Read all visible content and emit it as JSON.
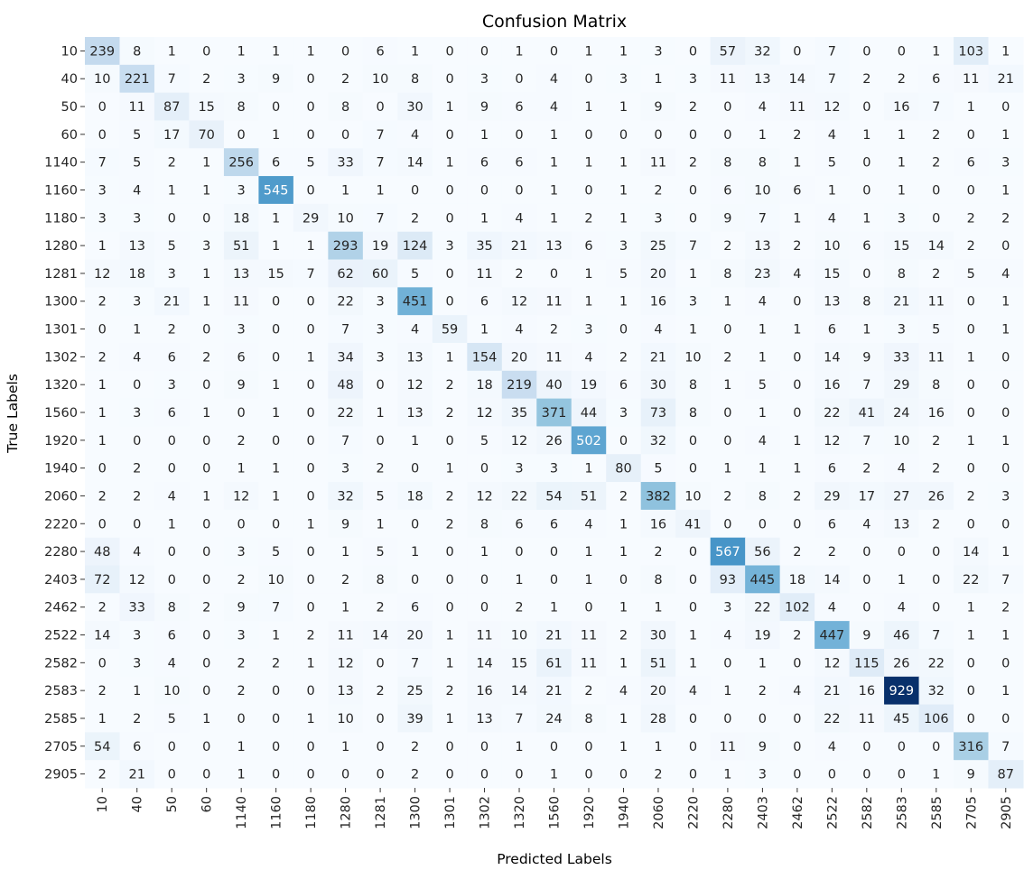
{
  "chart_data": {
    "type": "heatmap",
    "title": "Confusion Matrix",
    "xlabel": "Predicted Labels",
    "ylabel": "True Labels",
    "colormap": "Blues",
    "colorbar": false,
    "value_range": [
      0,
      929
    ],
    "row_labels": [
      "10",
      "40",
      "50",
      "60",
      "1140",
      "1160",
      "1180",
      "1280",
      "1281",
      "1300",
      "1301",
      "1302",
      "1320",
      "1560",
      "1920",
      "1940",
      "2060",
      "2220",
      "2280",
      "2403",
      "2462",
      "2522",
      "2582",
      "2583",
      "2585",
      "2705",
      "2905"
    ],
    "col_labels": [
      "10",
      "40",
      "50",
      "60",
      "1140",
      "1160",
      "1180",
      "1280",
      "1281",
      "1300",
      "1301",
      "1302",
      "1320",
      "1560",
      "1920",
      "1940",
      "2060",
      "2220",
      "2280",
      "2403",
      "2462",
      "2522",
      "2582",
      "2583",
      "2585",
      "2705",
      "2905"
    ],
    "values": [
      [
        239,
        8,
        1,
        0,
        1,
        1,
        1,
        0,
        6,
        1,
        0,
        0,
        1,
        0,
        1,
        1,
        3,
        0,
        57,
        32,
        0,
        7,
        0,
        0,
        1,
        103,
        1
      ],
      [
        10,
        221,
        7,
        2,
        3,
        9,
        0,
        2,
        10,
        8,
        0,
        3,
        0,
        4,
        0,
        3,
        1,
        3,
        11,
        13,
        14,
        7,
        2,
        2,
        6,
        11,
        21
      ],
      [
        0,
        11,
        87,
        15,
        8,
        0,
        0,
        8,
        0,
        30,
        1,
        9,
        6,
        4,
        1,
        1,
        9,
        2,
        0,
        4,
        11,
        12,
        0,
        16,
        7,
        1,
        0
      ],
      [
        0,
        5,
        17,
        70,
        0,
        1,
        0,
        0,
        7,
        4,
        0,
        1,
        0,
        1,
        0,
        0,
        0,
        0,
        0,
        1,
        2,
        4,
        1,
        1,
        2,
        0,
        1
      ],
      [
        7,
        5,
        2,
        1,
        256,
        6,
        5,
        33,
        7,
        14,
        1,
        6,
        6,
        1,
        1,
        1,
        11,
        2,
        8,
        8,
        1,
        5,
        0,
        1,
        2,
        6,
        3
      ],
      [
        3,
        4,
        1,
        1,
        3,
        545,
        0,
        1,
        1,
        0,
        0,
        0,
        0,
        1,
        0,
        1,
        2,
        0,
        6,
        10,
        6,
        1,
        0,
        1,
        0,
        0,
        1
      ],
      [
        3,
        3,
        0,
        0,
        18,
        1,
        29,
        10,
        7,
        2,
        0,
        1,
        4,
        1,
        2,
        1,
        3,
        0,
        9,
        7,
        1,
        4,
        1,
        3,
        0,
        2,
        2
      ],
      [
        1,
        13,
        5,
        3,
        51,
        1,
        1,
        293,
        19,
        124,
        3,
        35,
        21,
        13,
        6,
        3,
        25,
        7,
        2,
        13,
        2,
        10,
        6,
        15,
        14,
        2,
        0
      ],
      [
        12,
        18,
        3,
        1,
        13,
        15,
        7,
        62,
        60,
        5,
        0,
        11,
        2,
        0,
        1,
        5,
        20,
        1,
        8,
        23,
        4,
        15,
        0,
        8,
        2,
        5,
        4
      ],
      [
        2,
        3,
        21,
        1,
        11,
        0,
        0,
        22,
        3,
        451,
        0,
        6,
        12,
        11,
        1,
        1,
        16,
        3,
        1,
        4,
        0,
        13,
        8,
        21,
        11,
        0,
        1
      ],
      [
        0,
        1,
        2,
        0,
        3,
        0,
        0,
        7,
        3,
        4,
        59,
        1,
        4,
        2,
        3,
        0,
        4,
        1,
        0,
        1,
        1,
        6,
        1,
        3,
        5,
        0,
        1
      ],
      [
        2,
        4,
        6,
        2,
        6,
        0,
        1,
        34,
        3,
        13,
        1,
        154,
        20,
        11,
        4,
        2,
        21,
        10,
        2,
        1,
        0,
        14,
        9,
        33,
        11,
        1,
        0
      ],
      [
        1,
        0,
        3,
        0,
        9,
        1,
        0,
        48,
        0,
        12,
        2,
        18,
        219,
        40,
        19,
        6,
        30,
        8,
        1,
        5,
        0,
        16,
        7,
        29,
        8,
        0,
        0
      ],
      [
        1,
        3,
        6,
        1,
        0,
        1,
        0,
        22,
        1,
        13,
        2,
        12,
        35,
        371,
        44,
        3,
        73,
        8,
        0,
        1,
        0,
        22,
        41,
        24,
        16,
        0,
        0
      ],
      [
        1,
        0,
        0,
        0,
        2,
        0,
        0,
        7,
        0,
        1,
        0,
        5,
        12,
        26,
        502,
        0,
        32,
        0,
        0,
        4,
        1,
        12,
        7,
        10,
        2,
        1,
        1
      ],
      [
        0,
        2,
        0,
        0,
        1,
        1,
        0,
        3,
        2,
        0,
        1,
        0,
        3,
        3,
        1,
        80,
        5,
        0,
        1,
        1,
        1,
        6,
        2,
        4,
        2,
        0,
        0
      ],
      [
        2,
        2,
        4,
        1,
        12,
        1,
        0,
        32,
        5,
        18,
        2,
        12,
        22,
        54,
        51,
        2,
        382,
        10,
        2,
        8,
        2,
        29,
        17,
        27,
        26,
        2,
        3
      ],
      [
        0,
        0,
        1,
        0,
        0,
        0,
        1,
        9,
        1,
        0,
        2,
        8,
        6,
        6,
        4,
        1,
        16,
        41,
        0,
        0,
        0,
        6,
        4,
        13,
        2,
        0,
        0
      ],
      [
        48,
        4,
        0,
        0,
        3,
        5,
        0,
        1,
        5,
        1,
        0,
        1,
        0,
        0,
        1,
        1,
        2,
        0,
        567,
        56,
        2,
        2,
        0,
        0,
        0,
        14,
        1
      ],
      [
        72,
        12,
        0,
        0,
        2,
        10,
        0,
        2,
        8,
        0,
        0,
        0,
        1,
        0,
        1,
        0,
        8,
        0,
        93,
        445,
        18,
        14,
        0,
        1,
        0,
        22,
        7
      ],
      [
        2,
        33,
        8,
        2,
        9,
        7,
        0,
        1,
        2,
        6,
        0,
        0,
        2,
        1,
        0,
        1,
        1,
        0,
        3,
        22,
        102,
        4,
        0,
        4,
        0,
        1,
        2
      ],
      [
        14,
        3,
        6,
        0,
        3,
        1,
        2,
        11,
        14,
        20,
        1,
        11,
        10,
        21,
        11,
        2,
        30,
        1,
        4,
        19,
        2,
        447,
        9,
        46,
        7,
        1,
        1
      ],
      [
        0,
        3,
        4,
        0,
        2,
        2,
        1,
        12,
        0,
        7,
        1,
        14,
        15,
        61,
        11,
        1,
        51,
        1,
        0,
        1,
        0,
        12,
        115,
        26,
        22,
        0,
        0
      ],
      [
        2,
        1,
        10,
        0,
        2,
        0,
        0,
        13,
        2,
        25,
        2,
        16,
        14,
        21,
        2,
        4,
        20,
        4,
        1,
        2,
        4,
        21,
        16,
        929,
        32,
        0,
        1
      ],
      [
        1,
        2,
        5,
        1,
        0,
        0,
        1,
        10,
        0,
        39,
        1,
        13,
        7,
        24,
        8,
        1,
        28,
        0,
        0,
        0,
        0,
        22,
        11,
        45,
        106,
        0,
        0
      ],
      [
        54,
        6,
        0,
        0,
        1,
        0,
        0,
        1,
        0,
        2,
        0,
        0,
        1,
        0,
        0,
        1,
        1,
        0,
        11,
        9,
        0,
        4,
        0,
        0,
        0,
        316,
        7
      ],
      [
        2,
        21,
        0,
        0,
        1,
        0,
        0,
        0,
        0,
        2,
        0,
        0,
        0,
        1,
        0,
        0,
        2,
        0,
        1,
        3,
        0,
        0,
        0,
        0,
        1,
        9,
        87
      ]
    ]
  }
}
